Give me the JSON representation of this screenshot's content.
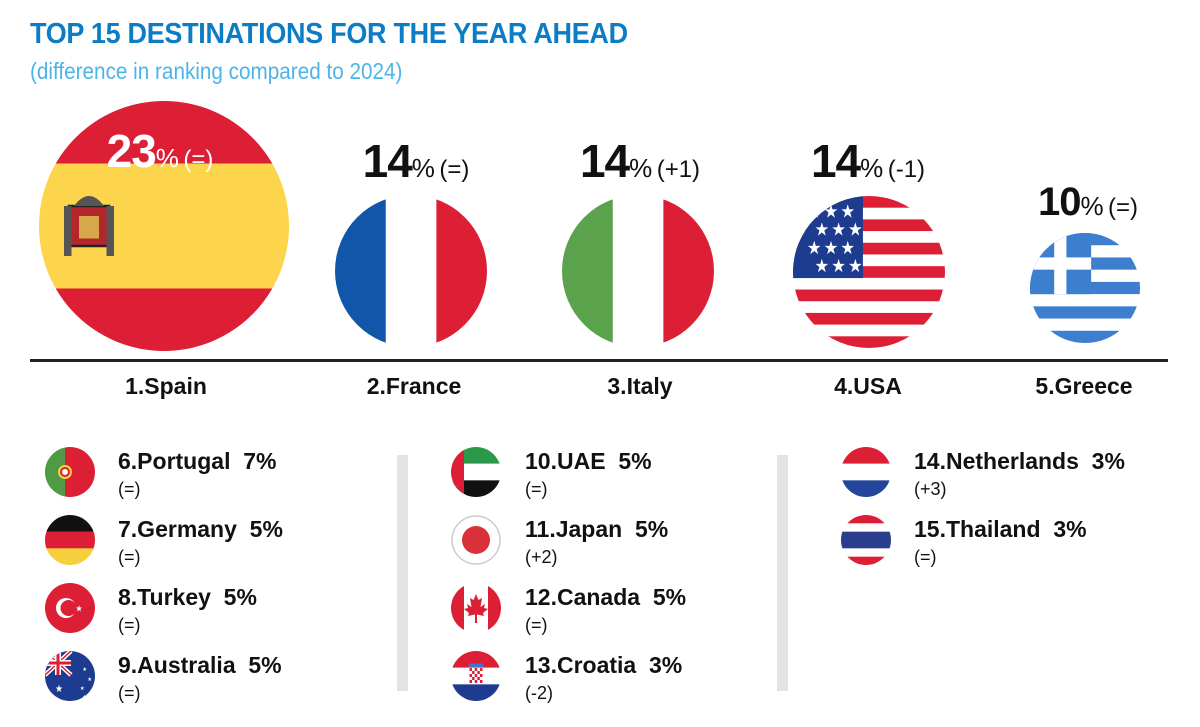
{
  "header": {
    "title": "TOP 15 DESTINATIONS FOR THE YEAR AHEAD",
    "subtitle": "(difference in ranking compared to 2024)"
  },
  "colors": {
    "title": "#0b7cc5",
    "subtitle": "#4db4e8"
  },
  "chart_data": {
    "type": "table",
    "title": "TOP 15 DESTINATIONS FOR THE YEAR AHEAD",
    "subtitle": "(difference in ranking compared to 2024)",
    "columns": [
      "rank",
      "country",
      "percent",
      "change"
    ],
    "rows": [
      {
        "rank": 1,
        "country": "Spain",
        "label": "1.Spain",
        "percent": 23,
        "value": "23",
        "change": "(=)",
        "flag": "spain-flag-icon",
        "code": "ES"
      },
      {
        "rank": 2,
        "country": "France",
        "label": "2.France",
        "percent": 14,
        "value": "14",
        "change": "(=)",
        "flag": "france-flag-icon",
        "code": "FR"
      },
      {
        "rank": 3,
        "country": "Italy",
        "label": "3.Italy",
        "percent": 14,
        "value": "14",
        "change": "(+1)",
        "flag": "italy-flag-icon",
        "code": "IT"
      },
      {
        "rank": 4,
        "country": "USA",
        "label": "4.USA",
        "percent": 14,
        "value": "14",
        "change": "(-1)",
        "flag": "usa-flag-icon",
        "code": "US"
      },
      {
        "rank": 5,
        "country": "Greece",
        "label": "5.Greece",
        "percent": 10,
        "value": "10",
        "change": "(=)",
        "flag": "greece-flag-icon",
        "code": "GR"
      },
      {
        "rank": 6,
        "country": "Portugal",
        "label": "6.Portugal  7%",
        "percent": 7,
        "change": "(=)",
        "flag": "portugal-flag-icon",
        "code": "PT"
      },
      {
        "rank": 7,
        "country": "Germany",
        "label": "7.Germany  5%",
        "percent": 5,
        "change": "(=)",
        "flag": "germany-flag-icon",
        "code": "DE"
      },
      {
        "rank": 8,
        "country": "Turkey",
        "label": "8.Turkey  5%",
        "percent": 5,
        "change": "(=)",
        "flag": "turkey-flag-icon",
        "code": "TR"
      },
      {
        "rank": 9,
        "country": "Australia",
        "label": "9.Australia  5%",
        "percent": 5,
        "change": "(=)",
        "flag": "australia-flag-icon",
        "code": "AU"
      },
      {
        "rank": 10,
        "country": "UAE",
        "label": "10.UAE  5%",
        "percent": 5,
        "change": "(=)",
        "flag": "uae-flag-icon",
        "code": "AE"
      },
      {
        "rank": 11,
        "country": "Japan",
        "label": "11.Japan  5%",
        "percent": 5,
        "change": "(+2)",
        "flag": "japan-flag-icon",
        "code": "JP"
      },
      {
        "rank": 12,
        "country": "Canada",
        "label": "12.Canada  5%",
        "percent": 5,
        "change": "(=)",
        "flag": "canada-flag-icon",
        "code": "CA"
      },
      {
        "rank": 13,
        "country": "Croatia",
        "label": "13.Croatia  3%",
        "percent": 3,
        "change": "(-2)",
        "flag": "croatia-flag-icon",
        "code": "HR"
      },
      {
        "rank": 14,
        "country": "Netherlands",
        "label": "14.Netherlands  3%",
        "percent": 3,
        "change": "(+3)",
        "flag": "netherlands-flag-icon",
        "code": "NL"
      },
      {
        "rank": 15,
        "country": "Thailand",
        "label": "15.Thailand  3%",
        "percent": 3,
        "change": "(=)",
        "flag": "thailand-flag-icon",
        "code": "TH"
      }
    ],
    "percent_sign": "%"
  }
}
